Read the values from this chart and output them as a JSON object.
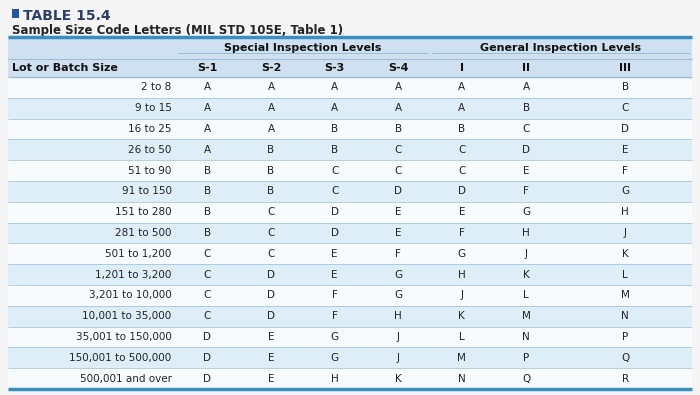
{
  "title": "TABLE 15.4",
  "subtitle": "Sample Size Code Letters (MIL STD 105E, Table 1)",
  "title_color": "#2c3e6b",
  "title_square_color": "#2255aa",
  "header1": "Special Inspection Levels",
  "header2": "General Inspection Levels",
  "col_headers": [
    "Lot or Batch Size",
    "S-1",
    "S-2",
    "S-3",
    "S-4",
    "I",
    "II",
    "III"
  ],
  "rows": [
    [
      "2 to 8",
      "A",
      "A",
      "A",
      "A",
      "A",
      "A",
      "B"
    ],
    [
      "9 to 15",
      "A",
      "A",
      "A",
      "A",
      "A",
      "B",
      "C"
    ],
    [
      "16 to 25",
      "A",
      "A",
      "B",
      "B",
      "B",
      "C",
      "D"
    ],
    [
      "26 to 50",
      "A",
      "B",
      "B",
      "C",
      "C",
      "D",
      "E"
    ],
    [
      "51 to 90",
      "B",
      "B",
      "C",
      "C",
      "C",
      "E",
      "F"
    ],
    [
      "91 to 150",
      "B",
      "B",
      "C",
      "D",
      "D",
      "F",
      "G"
    ],
    [
      "151 to 280",
      "B",
      "C",
      "D",
      "E",
      "E",
      "G",
      "H"
    ],
    [
      "281 to 500",
      "B",
      "C",
      "D",
      "E",
      "F",
      "H",
      "J"
    ],
    [
      "501 to 1,200",
      "C",
      "C",
      "E",
      "F",
      "G",
      "J",
      "K"
    ],
    [
      "1,201 to 3,200",
      "C",
      "D",
      "E",
      "G",
      "H",
      "K",
      "L"
    ],
    [
      "3,201 to 10,000",
      "C",
      "D",
      "F",
      "G",
      "J",
      "L",
      "M"
    ],
    [
      "10,001 to 35,000",
      "C",
      "D",
      "F",
      "H",
      "K",
      "M",
      "N"
    ],
    [
      "35,001 to 150,000",
      "D",
      "E",
      "G",
      "J",
      "L",
      "N",
      "P"
    ],
    [
      "150,001 to 500,000",
      "D",
      "E",
      "G",
      "J",
      "M",
      "P",
      "Q"
    ],
    [
      "500,001 and over",
      "D",
      "E",
      "H",
      "K",
      "N",
      "Q",
      "R"
    ]
  ],
  "bg_color": "#f5f5f5",
  "header_bg": "#cfe0f0",
  "row_alt_bg": "#ddeef8",
  "row_normal_bg": "#f8fbfe",
  "border_color_thick": "#3a8fc0",
  "border_color_thin": "#9abdd8",
  "text_color": "#222222",
  "header_text_color": "#111111",
  "font_size_title": 10,
  "font_size_subtitle": 8.5,
  "font_size_group_header": 8,
  "font_size_col_header": 8,
  "font_size_data": 7.5
}
